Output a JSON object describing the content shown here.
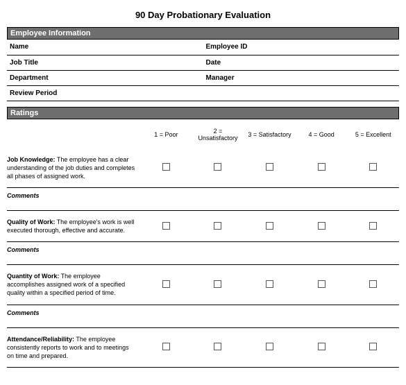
{
  "title": "90 Day Probationary Evaluation",
  "sections": {
    "employee_info": {
      "header": "Employee Information",
      "fields": {
        "name_label": "Name",
        "name_value": "",
        "employee_id_label": "Employee ID",
        "employee_id_value": "",
        "job_title_label": "Job Title",
        "job_title_value": "",
        "date_label": "Date",
        "date_value": "",
        "department_label": "Department",
        "department_value": "",
        "manager_label": "Manager",
        "manager_value": "",
        "review_period_label": "Review Period",
        "review_period_value": ""
      }
    },
    "ratings": {
      "header": "Ratings",
      "scale": {
        "r1": "1 = Poor",
        "r2": "2 = Unsatisfactory",
        "r3": "3 = Satisfactory",
        "r4": "4 = Good",
        "r5": "5 = Excellent"
      },
      "comments_label": "Comments",
      "criteria": {
        "c1_label": "Job Knowledge:",
        "c1_desc": "  The employee has a clear understanding of the job duties and completes all phases of assigned work.",
        "c2_label": "Quality of Work:",
        "c2_desc": "  The employee's work is well executed thorough, effective and accurate.",
        "c3_label": "Quantity of Work:",
        "c3_desc": "  The employee accomplishes assigned work of a specified quality within a specified period of time.",
        "c4_label": "Attendance/Reliability:",
        "c4_desc": "  The employee consistently reports to work and to meetings on time and prepared."
      }
    }
  },
  "colors": {
    "section_bg": "#6e6e6e",
    "section_fg": "#ffffff",
    "border": "#000000",
    "checkbox_border": "#555555"
  }
}
